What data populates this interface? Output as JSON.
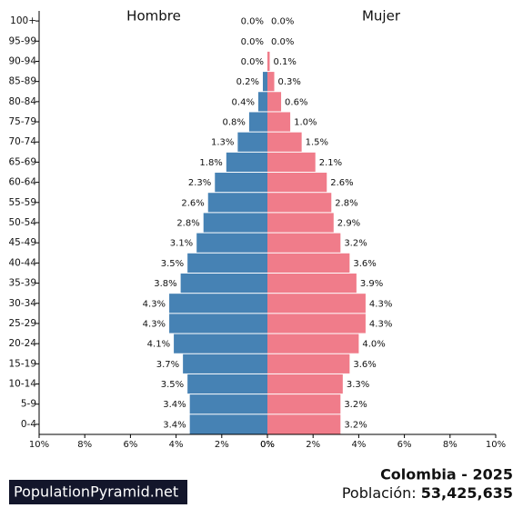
{
  "chart_data": {
    "type": "pyramid",
    "categories": [
      "100+",
      "95-99",
      "90-94",
      "85-89",
      "80-84",
      "75-79",
      "70-74",
      "65-69",
      "60-64",
      "55-59",
      "50-54",
      "45-49",
      "40-44",
      "35-39",
      "30-34",
      "25-29",
      "20-24",
      "15-19",
      "10-14",
      "5-9",
      "0-4"
    ],
    "series": [
      {
        "name": "Hombre",
        "color": "#4682b4",
        "side": "left",
        "values": [
          0.0,
          0.0,
          0.0,
          0.2,
          0.4,
          0.8,
          1.3,
          1.8,
          2.3,
          2.6,
          2.8,
          3.1,
          3.5,
          3.8,
          4.3,
          4.3,
          4.1,
          3.7,
          3.5,
          3.4,
          3.4
        ],
        "value_labels": [
          "0.0%",
          "0.0%",
          "0.0%",
          "0.2%",
          "0.4%",
          "0.8%",
          "1.3%",
          "1.8%",
          "2.3%",
          "2.6%",
          "2.8%",
          "3.1%",
          "3.5%",
          "3.8%",
          "4.3%",
          "4.3%",
          "4.1%",
          "3.7%",
          "3.5%",
          "3.4%",
          "3.4%"
        ]
      },
      {
        "name": "Mujer",
        "color": "#f07c8a",
        "side": "right",
        "values": [
          0.0,
          0.0,
          0.1,
          0.3,
          0.6,
          1.0,
          1.5,
          2.1,
          2.6,
          2.8,
          2.9,
          3.2,
          3.6,
          3.9,
          4.3,
          4.3,
          4.0,
          3.6,
          3.3,
          3.2,
          3.2
        ],
        "value_labels": [
          "0.0%",
          "0.0%",
          "0.1%",
          "0.3%",
          "0.6%",
          "1.0%",
          "1.5%",
          "2.1%",
          "2.6%",
          "2.8%",
          "2.9%",
          "3.2%",
          "3.6%",
          "3.9%",
          "4.3%",
          "4.3%",
          "4.0%",
          "3.6%",
          "3.3%",
          "3.2%",
          "3.2%"
        ]
      }
    ],
    "xlim": [
      0,
      10
    ],
    "xticks": [
      {
        "value": 0,
        "label": "0%"
      },
      {
        "value": 2,
        "label": "2%"
      },
      {
        "value": 4,
        "label": "4%"
      },
      {
        "value": 6,
        "label": "6%"
      },
      {
        "value": 8,
        "label": "8%"
      },
      {
        "value": 10,
        "label": "10%"
      }
    ]
  },
  "footer": {
    "site": "PopulationPyramid.net",
    "heading": "Colombia - 2025",
    "population_label": "Población:",
    "population": {
      "value": 53425635,
      "label": "53,425,635"
    }
  }
}
